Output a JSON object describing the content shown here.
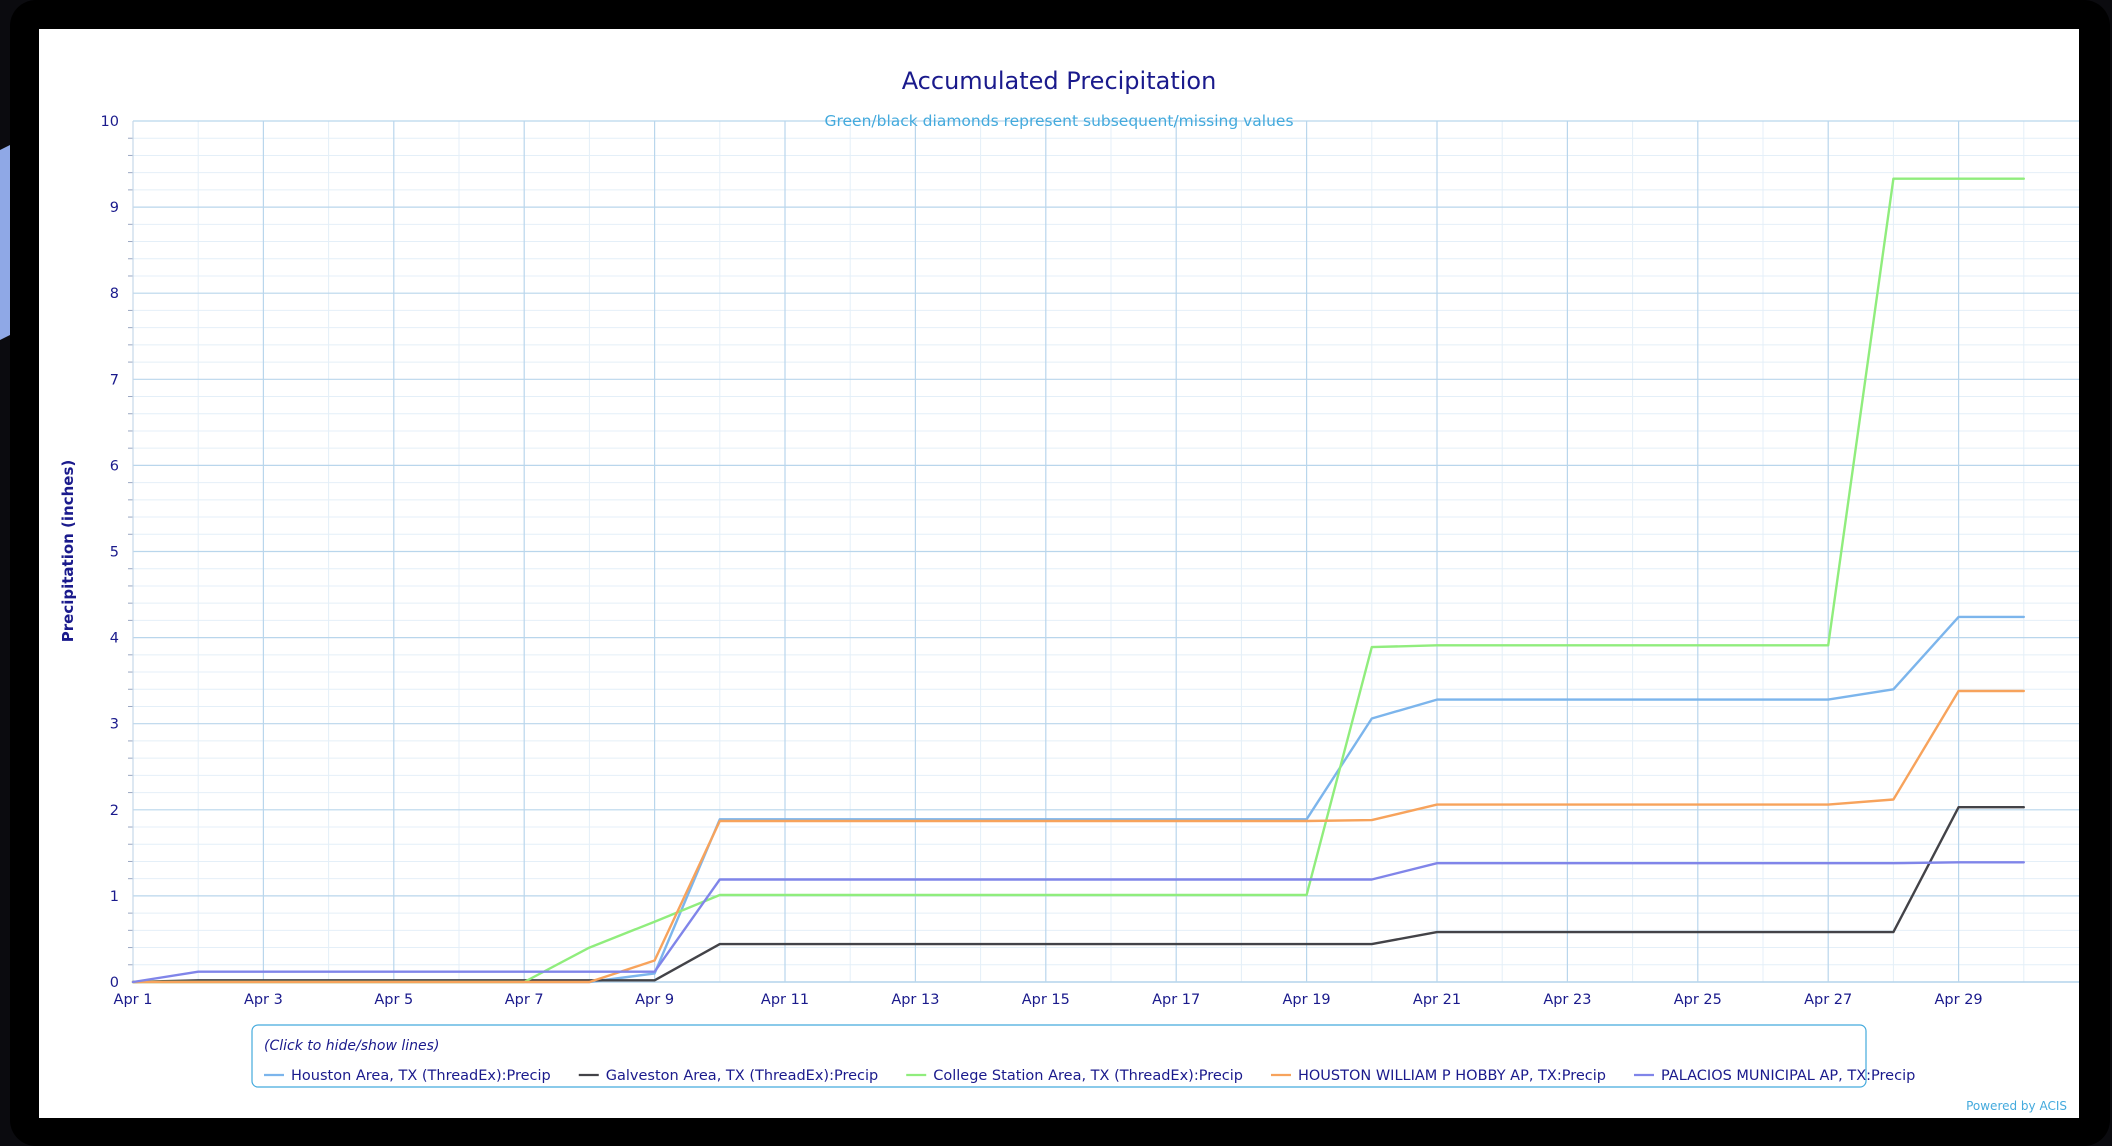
{
  "colors": {
    "frame": "#000000",
    "desktop_accent": "#8fa8e6",
    "plot_background": "#ffffff",
    "grid_major": "#b9d6ec",
    "grid_minor": "#e4eff8",
    "text_dark": "#1a1a8c",
    "text_accent": "#44aadd",
    "legend_border": "#44aadd"
  },
  "chart_data": {
    "type": "line",
    "title": "Accumulated Precipitation",
    "subtitle": "Green/black diamonds represent subsequent/missing values",
    "xlabel": "",
    "ylabel": "Precipitation (inches)",
    "xlim": [
      1,
      30.3
    ],
    "ylim": [
      0,
      10
    ],
    "y_ticks": [
      0,
      1,
      2,
      3,
      4,
      5,
      6,
      7,
      8,
      9,
      10
    ],
    "x_ticks": [
      1,
      3,
      5,
      7,
      9,
      11,
      13,
      15,
      17,
      19,
      21,
      23,
      25,
      27,
      29
    ],
    "x_tick_labels": [
      "Apr 1",
      "Apr 3",
      "Apr 5",
      "Apr 7",
      "Apr 9",
      "Apr 11",
      "Apr 13",
      "Apr 15",
      "Apr 17",
      "Apr 19",
      "Apr 21",
      "Apr 23",
      "Apr 25",
      "Apr 27",
      "Apr 29"
    ],
    "grid": true,
    "legend_position": "bottom",
    "legend_hint": "(Click to hide/show lines)",
    "credit": "Powered by ACIS",
    "series": [
      {
        "name": "Houston Area, TX (ThreadEx):Precip",
        "color": "#7cb5ec",
        "x": [
          1,
          2,
          3,
          4,
          5,
          6,
          7,
          8,
          9,
          10,
          11,
          12,
          13,
          14,
          15,
          16,
          17,
          18,
          19,
          20,
          21,
          22,
          23,
          24,
          25,
          26,
          27,
          28,
          29,
          30
        ],
        "y": [
          0,
          0,
          0,
          0,
          0,
          0,
          0,
          0,
          0.1,
          1.89,
          1.89,
          1.89,
          1.89,
          1.89,
          1.89,
          1.89,
          1.89,
          1.89,
          1.89,
          3.06,
          3.28,
          3.28,
          3.28,
          3.28,
          3.28,
          3.28,
          3.28,
          3.4,
          4.24,
          4.24
        ]
      },
      {
        "name": "Galveston Area, TX (ThreadEx):Precip",
        "color": "#434348",
        "x": [
          1,
          2,
          3,
          4,
          5,
          6,
          7,
          8,
          9,
          10,
          11,
          12,
          13,
          14,
          15,
          16,
          17,
          18,
          19,
          20,
          21,
          22,
          23,
          24,
          25,
          26,
          27,
          28,
          29,
          30
        ],
        "y": [
          0,
          0.02,
          0.02,
          0.02,
          0.02,
          0.02,
          0.02,
          0.02,
          0.02,
          0.44,
          0.44,
          0.44,
          0.44,
          0.44,
          0.44,
          0.44,
          0.44,
          0.44,
          0.44,
          0.44,
          0.58,
          0.58,
          0.58,
          0.58,
          0.58,
          0.58,
          0.58,
          0.58,
          2.03,
          2.03
        ]
      },
      {
        "name": "College Station Area, TX (ThreadEx):Precip",
        "color": "#90ed7d",
        "x": [
          1,
          2,
          3,
          4,
          5,
          6,
          7,
          8,
          9,
          10,
          11,
          12,
          13,
          14,
          15,
          16,
          17,
          18,
          19,
          20,
          21,
          22,
          23,
          24,
          25,
          26,
          27,
          28,
          29,
          30
        ],
        "y": [
          0,
          0,
          0,
          0,
          0,
          0,
          0,
          0.4,
          0.7,
          1.01,
          1.01,
          1.01,
          1.01,
          1.01,
          1.01,
          1.01,
          1.01,
          1.01,
          1.01,
          3.89,
          3.91,
          3.91,
          3.91,
          3.91,
          3.91,
          3.91,
          3.91,
          9.33,
          9.33,
          9.33
        ]
      },
      {
        "name": "HOUSTON WILLIAM P HOBBY AP, TX:Precip",
        "color": "#f7a35c",
        "x": [
          1,
          2,
          3,
          4,
          5,
          6,
          7,
          8,
          9,
          10,
          11,
          12,
          13,
          14,
          15,
          16,
          17,
          18,
          19,
          20,
          21,
          22,
          23,
          24,
          25,
          26,
          27,
          28,
          29,
          30
        ],
        "y": [
          0,
          0,
          0,
          0,
          0,
          0,
          0,
          0,
          0.25,
          1.87,
          1.87,
          1.87,
          1.87,
          1.87,
          1.87,
          1.87,
          1.87,
          1.87,
          1.87,
          1.88,
          2.06,
          2.06,
          2.06,
          2.06,
          2.06,
          2.06,
          2.06,
          2.12,
          3.38,
          3.38
        ]
      },
      {
        "name": "PALACIOS MUNICIPAL AP, TX:Precip",
        "color": "#8085e9",
        "x": [
          1,
          2,
          3,
          4,
          5,
          6,
          7,
          8,
          9,
          10,
          11,
          12,
          13,
          14,
          15,
          16,
          17,
          18,
          19,
          20,
          21,
          22,
          23,
          24,
          25,
          26,
          27,
          28,
          29,
          30
        ],
        "y": [
          0,
          0.12,
          0.12,
          0.12,
          0.12,
          0.12,
          0.12,
          0.12,
          0.12,
          1.19,
          1.19,
          1.19,
          1.19,
          1.19,
          1.19,
          1.19,
          1.19,
          1.19,
          1.19,
          1.19,
          1.38,
          1.38,
          1.38,
          1.38,
          1.38,
          1.38,
          1.38,
          1.38,
          1.39,
          1.39
        ]
      }
    ]
  }
}
